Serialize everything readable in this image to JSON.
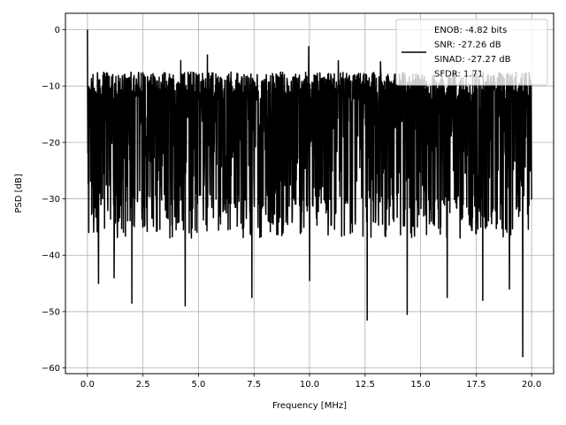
{
  "chart_data": {
    "type": "line",
    "title": "",
    "xlabel": "Frequency [MHz]",
    "ylabel": "PSD [dB]",
    "xlim": [
      -0.99,
      20.99
    ],
    "ylim": [
      -61,
      2.9
    ],
    "x_ticks": [
      0.0,
      2.5,
      5.0,
      7.5,
      10.0,
      12.5,
      15.0,
      17.5,
      20.0
    ],
    "x_tick_labels": [
      "0.0",
      "2.5",
      "5.0",
      "7.5",
      "10.0",
      "12.5",
      "15.0",
      "17.5",
      "20.0"
    ],
    "y_ticks": [
      0,
      -10,
      -20,
      -30,
      -40,
      -50,
      -60
    ],
    "y_tick_labels": [
      "0",
      "−10",
      "−20",
      "−30",
      "−40",
      "−50",
      "−60"
    ],
    "grid": true,
    "legend_position": "top-right",
    "series": [
      {
        "color": "#000000",
        "x_range": [
          0.0,
          20.0
        ],
        "n_points": 2000,
        "peak": {
          "x": 0.0,
          "y": 0.0
        },
        "upper_envelope_approx": -9.5,
        "typical_range": [
          -35,
          -5
        ],
        "notable_dips": [
          {
            "x": 0.5,
            "y": -45
          },
          {
            "x": 1.2,
            "y": -44
          },
          {
            "x": 2.0,
            "y": -48.5
          },
          {
            "x": 4.4,
            "y": -49
          },
          {
            "x": 7.4,
            "y": -47.5
          },
          {
            "x": 10.0,
            "y": -44.5
          },
          {
            "x": 12.6,
            "y": -51.5
          },
          {
            "x": 14.4,
            "y": -50.5
          },
          {
            "x": 16.2,
            "y": -47.5
          },
          {
            "x": 17.8,
            "y": -48
          },
          {
            "x": 19.0,
            "y": -46
          },
          {
            "x": 19.6,
            "y": -58
          }
        ],
        "notable_peaks": [
          {
            "x": 9.96,
            "y": -3
          },
          {
            "x": 5.4,
            "y": -4.5
          },
          {
            "x": 4.2,
            "y": -5.5
          },
          {
            "x": 11.3,
            "y": -5.5
          },
          {
            "x": 13.2,
            "y": -5.7
          }
        ]
      }
    ],
    "legend": {
      "lines": [
        "ENOB: -4.82 bits",
        "SNR: -27.26 dB",
        "SINAD: -27.27 dB",
        "SFDR: 1.71"
      ]
    }
  }
}
